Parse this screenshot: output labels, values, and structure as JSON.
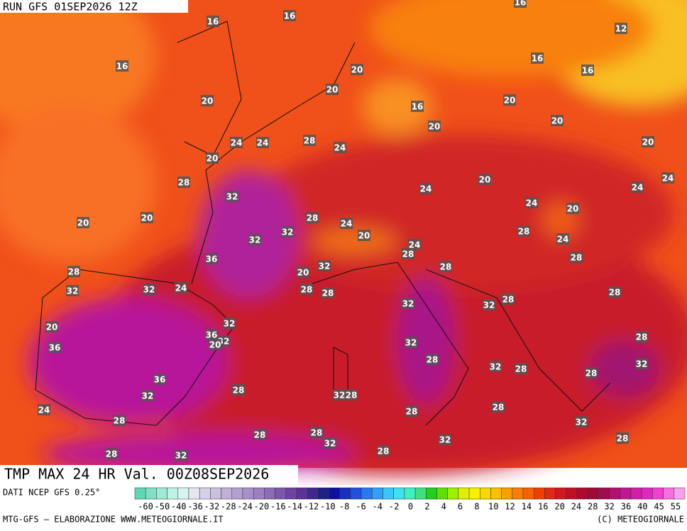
{
  "header": {
    "title": "RUN GFS 01SEP2026 12Z"
  },
  "map": {
    "labels": [
      "16",
      "16",
      "16",
      "12",
      "16",
      "20",
      "16",
      "16",
      "20",
      "20",
      "16",
      "20",
      "20",
      "20",
      "20",
      "24",
      "24",
      "28",
      "24",
      "20",
      "28",
      "20",
      "24",
      "24",
      "24",
      "32",
      "24",
      "20",
      "20",
      "20",
      "28",
      "24",
      "32",
      "32",
      "20",
      "28",
      "24",
      "24",
      "28",
      "36",
      "28",
      "32",
      "28",
      "20",
      "28",
      "32",
      "32",
      "24",
      "28",
      "28",
      "28",
      "28",
      "32",
      "32",
      "32",
      "36",
      "32",
      "20",
      "20",
      "36",
      "28",
      "32",
      "28",
      "32",
      "32",
      "28",
      "28",
      "36",
      "28",
      "32",
      "28",
      "32",
      "28",
      "24",
      "28",
      "28",
      "32",
      "28",
      "28",
      "28",
      "32",
      "32",
      "28",
      "28",
      "32"
    ]
  },
  "footer": {
    "field": "TMP MAX 24 HR Val. 00Z08SEP2026",
    "source": "DATI NCEP GFS 0.25°",
    "credit": "MTG-GFS — ELABORAZIONE WWW.METEOGIORNALE.IT",
    "copyright": "(C) METEOGIORNALE"
  },
  "colorbar": {
    "labels": [
      "-60",
      "-50",
      "-40",
      "-36",
      "-32",
      "-28",
      "-24",
      "-20",
      "-16",
      "-14",
      "-12",
      "-10",
      "-8",
      "-6",
      "-4",
      "-2",
      "0",
      "2",
      "4",
      "6",
      "8",
      "10",
      "12",
      "14",
      "16",
      "20",
      "24",
      "28",
      "32",
      "36",
      "40",
      "45",
      "55"
    ],
    "colors": [
      "#5fd6b4",
      "#7fe0c4",
      "#9fead4",
      "#bff2e4",
      "#d8f4ee",
      "#e6e6f0",
      "#d8d0e8",
      "#ccc0e0",
      "#c0b0d8",
      "#b4a0d0",
      "#a890c8",
      "#9c80c0",
      "#8c6cb4",
      "#7c58a8",
      "#6c44a0",
      "#5c3498",
      "#402890",
      "#202088",
      "#1010a0",
      "#1830c0",
      "#2050e0",
      "#2878f0",
      "#30a0f8",
      "#38c8f8",
      "#40e0f0",
      "#40f0c0",
      "#40e080",
      "#20d020",
      "#60e000",
      "#a0f000",
      "#e0f000",
      "#f8f000",
      "#f8d800",
      "#f8c000",
      "#f8a000",
      "#f88000",
      "#f86000",
      "#f04000",
      "#e02818",
      "#d01820",
      "#c01028",
      "#b00830",
      "#a00838",
      "#a00c50",
      "#b01070",
      "#c01890",
      "#d020a8",
      "#e028c0",
      "#f040d0",
      "#f870e0",
      "#f8a0f0"
    ]
  }
}
